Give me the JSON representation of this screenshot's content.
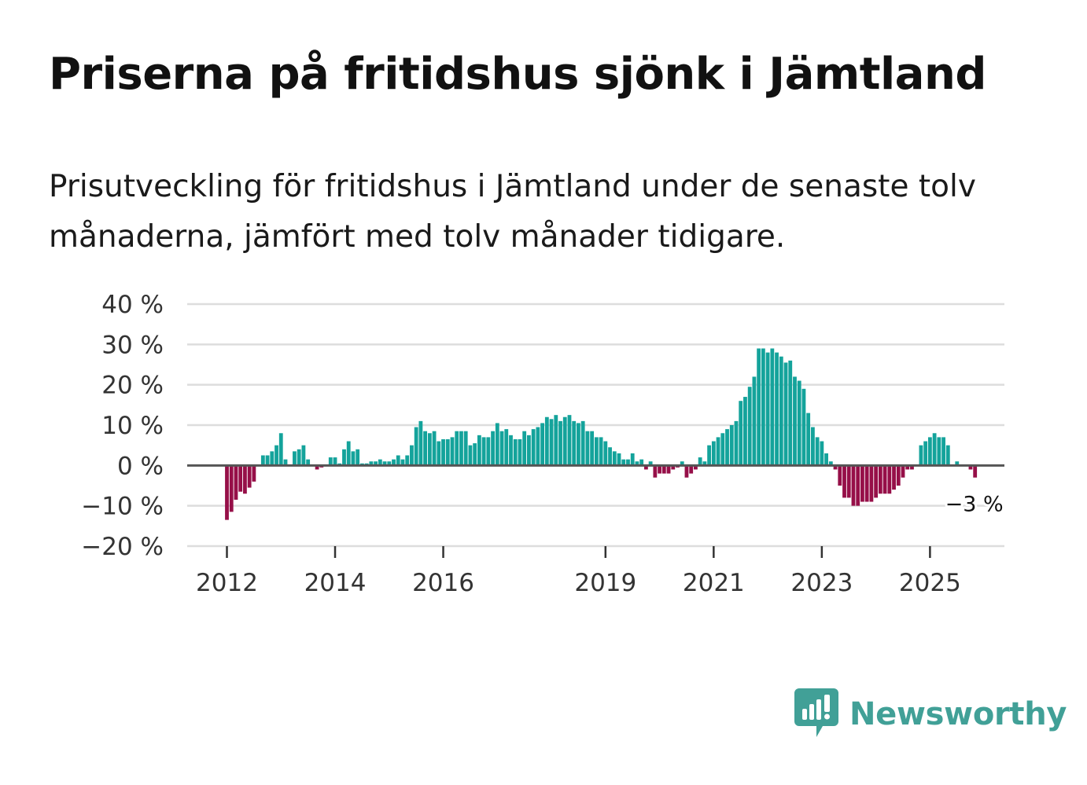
{
  "title": "Priserna på fritidshus sjönk i Jämtland",
  "subtitle": "Prisutveckling för fritidshus i Jämtland under de senaste tolv månaderna, jämfört med tolv månader tidigare.",
  "brand": {
    "name": "Newsworthy",
    "color": "#41a097"
  },
  "chart_data": {
    "type": "bar",
    "title": "Priserna på fritidshus sjönk i Jämtland",
    "xlabel": "",
    "ylabel": "",
    "ylim": [
      -20,
      40
    ],
    "y_ticks": [
      40,
      30,
      20,
      10,
      0,
      -10,
      -20
    ],
    "y_tick_labels": [
      "40 %",
      "30 %",
      "20 %",
      "10 %",
      "0 %",
      "−10 %",
      "−20 %"
    ],
    "x_tick_labels": [
      "2012",
      "2014",
      "2016",
      "2019",
      "2021",
      "2023",
      "2025"
    ],
    "x_tick_indices": [
      0,
      24,
      48,
      84,
      108,
      132,
      156
    ],
    "first_month": "2012-01",
    "positive_color": "#14a39b",
    "negative_color": "#960f48",
    "end_label": "−3 %",
    "values": [
      -13.5,
      -11.5,
      -8.5,
      -6.5,
      -7,
      -5.5,
      -4,
      0,
      2.5,
      2.5,
      3.5,
      5,
      8,
      1.5,
      0,
      3.5,
      4,
      5,
      1.5,
      0,
      -1,
      -0.5,
      0,
      2,
      2,
      0.5,
      4,
      6,
      3.5,
      4,
      0.5,
      0.5,
      1,
      1,
      1.5,
      1,
      1,
      1.5,
      2.5,
      1.5,
      2.5,
      5,
      9.5,
      11,
      8.5,
      8,
      8.5,
      6,
      6.5,
      6.5,
      7,
      8.5,
      8.5,
      8.5,
      5,
      5.5,
      7.5,
      7,
      7,
      8.5,
      10.5,
      8.5,
      9,
      7.5,
      6.5,
      6.5,
      8.5,
      7.5,
      9,
      9.5,
      10.5,
      12,
      11.5,
      12.5,
      11,
      12,
      12.5,
      11,
      10.5,
      11,
      8.5,
      8.5,
      7,
      7,
      6,
      4.5,
      3.5,
      3,
      1.5,
      1.5,
      3,
      1,
      1.5,
      -1,
      1,
      -3,
      -2,
      -2,
      -2,
      -1,
      -0.5,
      1,
      -3,
      -2,
      -1,
      2,
      1,
      5,
      6,
      7,
      8,
      9,
      10,
      11,
      16,
      17,
      19.5,
      22,
      29,
      29,
      28,
      29,
      28,
      27,
      25.5,
      26,
      22,
      21,
      19,
      13,
      9.5,
      7,
      6,
      3,
      1,
      -1,
      -5,
      -8,
      -8,
      -10,
      -10,
      -9,
      -9,
      -9,
      -8,
      -7,
      -7,
      -7,
      -6,
      -5,
      -3,
      -1,
      -1,
      0,
      5,
      6,
      7,
      8,
      7,
      7,
      5,
      0,
      1,
      0,
      0,
      -1,
      -3
    ]
  }
}
